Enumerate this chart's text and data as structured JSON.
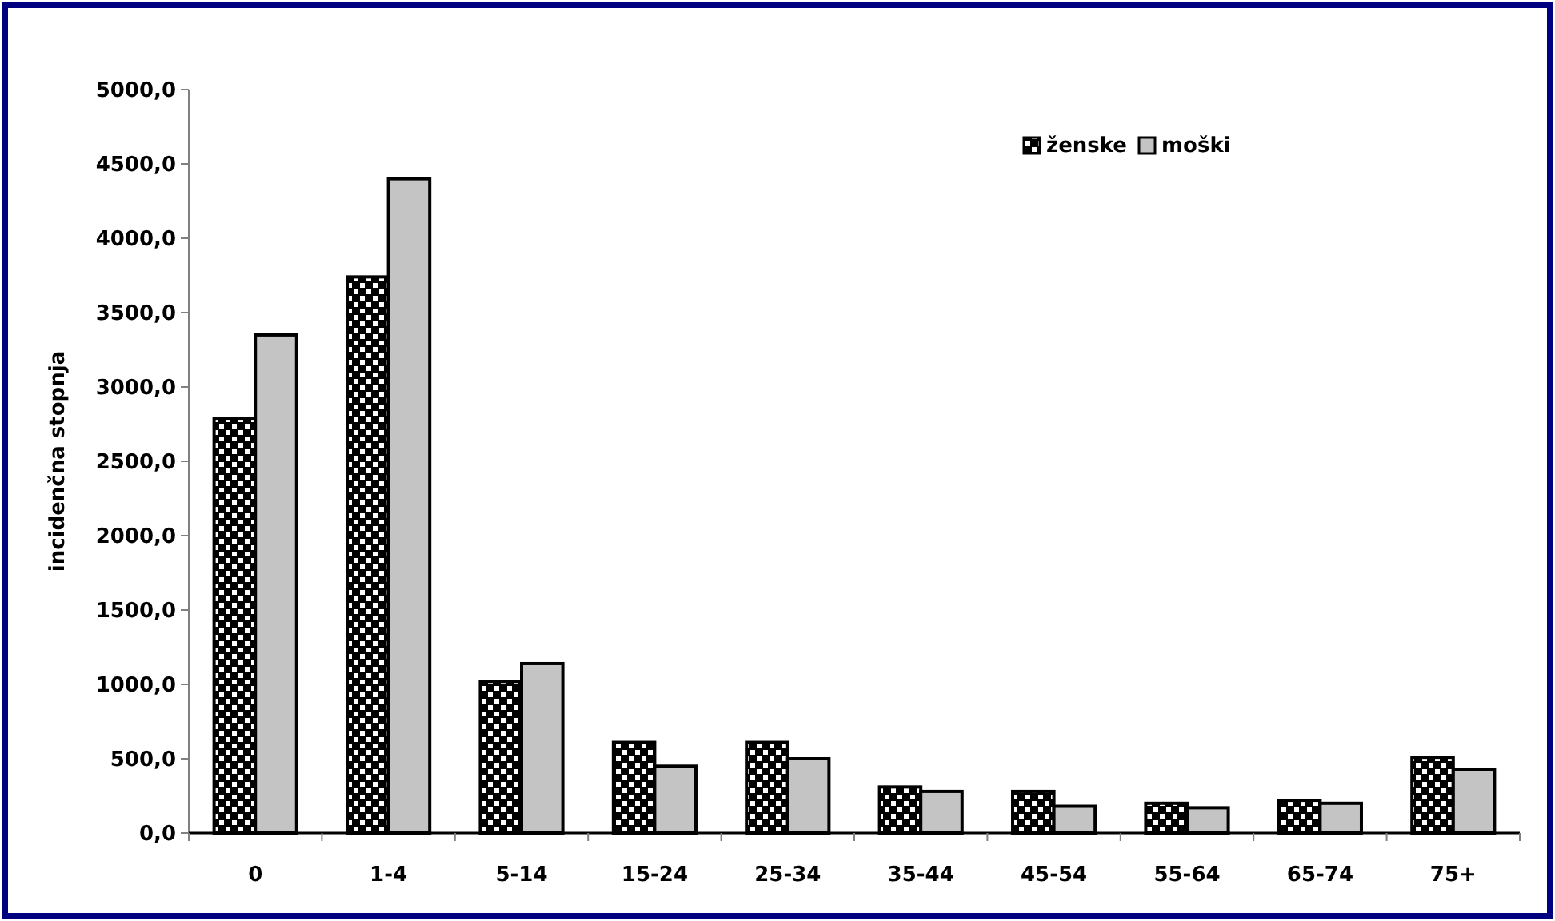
{
  "chart_data": {
    "type": "bar",
    "ylabel": "incidenčna stopnja",
    "categories": [
      "0",
      "1-4",
      "5-14",
      "15-24",
      "25-34",
      "35-44",
      "45-54",
      "55-64",
      "65-74",
      "75+"
    ],
    "series": [
      {
        "name": "ženske",
        "color": "#000000",
        "values": [
          2790,
          3740,
          1020,
          610,
          610,
          310,
          280,
          200,
          220,
          510
        ]
      },
      {
        "name": "moški",
        "color": "#c4c4c4",
        "values": [
          3350,
          4400,
          1140,
          450,
          500,
          280,
          180,
          170,
          200,
          430
        ]
      }
    ],
    "ylim": [
      0,
      5000
    ],
    "yticks": [
      {
        "value": 0,
        "label": "0,0"
      },
      {
        "value": 500,
        "label": "500,0"
      },
      {
        "value": 1000,
        "label": "1000,0"
      },
      {
        "value": 1500,
        "label": "1500,0"
      },
      {
        "value": 2000,
        "label": "2000,0"
      },
      {
        "value": 2500,
        "label": "2500,0"
      },
      {
        "value": 3000,
        "label": "3000,0"
      },
      {
        "value": 3500,
        "label": "3500,0"
      },
      {
        "value": 4000,
        "label": "4000,0"
      },
      {
        "value": 4500,
        "label": "4500,0"
      },
      {
        "value": 5000,
        "label": "5000,0"
      }
    ],
    "grid": false,
    "legend": "top right"
  }
}
